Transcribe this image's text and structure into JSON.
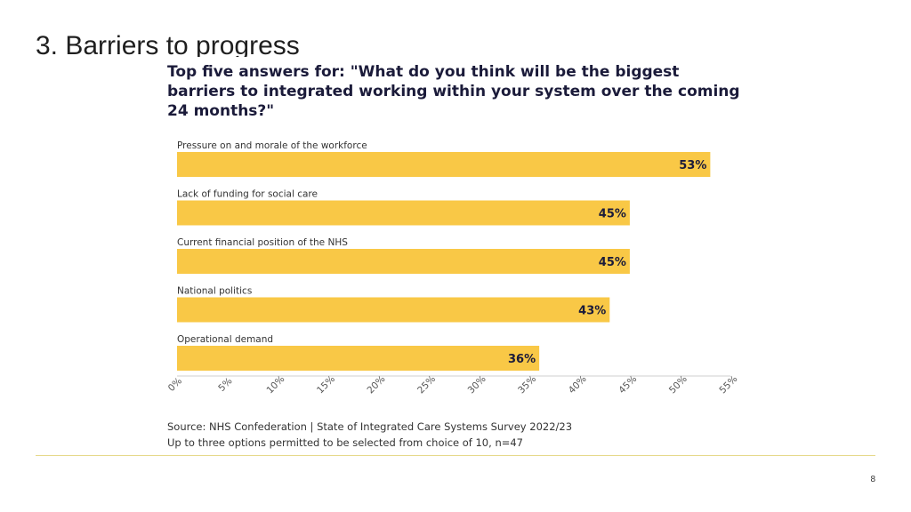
{
  "slide": {
    "title": "3. Barriers to progress",
    "page_number": "8"
  },
  "chart_data": {
    "type": "bar",
    "orientation": "horizontal",
    "title": "Top five answers for: \"What do you think will be the biggest barriers to integrated working within your system over the coming 24 months?\"",
    "categories": [
      "Pressure on and morale of the workforce",
      "Lack of funding for social care",
      "Current financial position of the NHS",
      "National politics",
      "Operational demand"
    ],
    "values": [
      53,
      45,
      45,
      43,
      36
    ],
    "value_labels": [
      "53%",
      "45%",
      "45%",
      "43%",
      "36%"
    ],
    "xlim": [
      0,
      55
    ],
    "xticks": [
      "0%",
      "5%",
      "10%",
      "15%",
      "20%",
      "25%",
      "30%",
      "35%",
      "40%",
      "45%",
      "50%",
      "55%"
    ],
    "bar_color": "#f9c846",
    "xlabel": "",
    "ylabel": "",
    "grid": false
  },
  "source": {
    "line1": "Source: NHS Confederation | State of Integrated Care Systems Survey 2022/23",
    "line2": "Up to three options permitted to be selected from choice of 10, n=47"
  }
}
